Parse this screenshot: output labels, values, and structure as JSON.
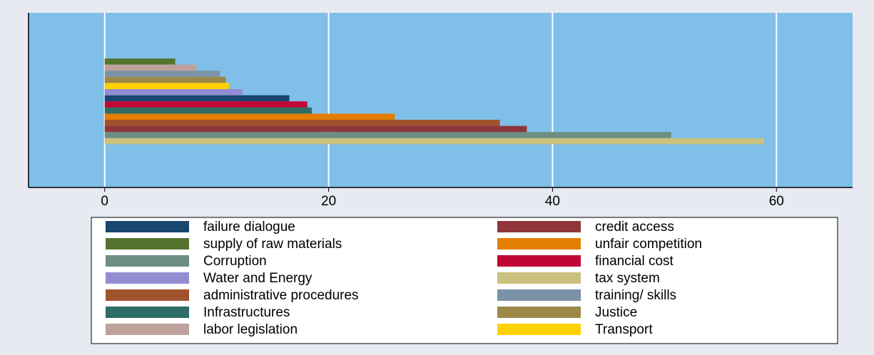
{
  "chart_data": {
    "type": "hbar",
    "xlim": [
      -6.8,
      66.8
    ],
    "xticks": [
      0,
      20,
      40,
      60
    ],
    "grid": true,
    "series": [
      {
        "name": "failure dialogue",
        "color": "#1a476f",
        "values": [
          16.5
        ]
      },
      {
        "name": "credit access",
        "color": "#90353b",
        "values": [
          37.7
        ]
      },
      {
        "name": "supply of raw materials",
        "color": "#55752f",
        "values": [
          6.3
        ]
      },
      {
        "name": "unfair competition",
        "color": "#e37e00",
        "values": [
          25.9
        ]
      },
      {
        "name": "Corruption",
        "color": "#6e8e84",
        "values": [
          50.6
        ]
      },
      {
        "name": "financial cost",
        "color": "#c10534",
        "values": [
          18.1
        ]
      },
      {
        "name": "Water and Energy",
        "color": "#938dd2",
        "values": [
          12.3
        ]
      },
      {
        "name": "tax system",
        "color": "#cac27e",
        "values": [
          58.9
        ]
      },
      {
        "name": "administrative procedures",
        "color": "#a0522d",
        "values": [
          35.3
        ]
      },
      {
        "name": "training/ skills",
        "color": "#7b92a8",
        "values": [
          10.3
        ]
      },
      {
        "name": "Infrastructures",
        "color": "#2d6d66",
        "values": [
          18.5
        ]
      },
      {
        "name": "Justice",
        "color": "#9c8847",
        "values": [
          10.8
        ]
      },
      {
        "name": "labor legislation",
        "color": "#bfa19c",
        "values": [
          8.2
        ]
      },
      {
        "name": "Transport",
        "color": "#ffd200",
        "values": [
          11.1
        ]
      }
    ]
  }
}
